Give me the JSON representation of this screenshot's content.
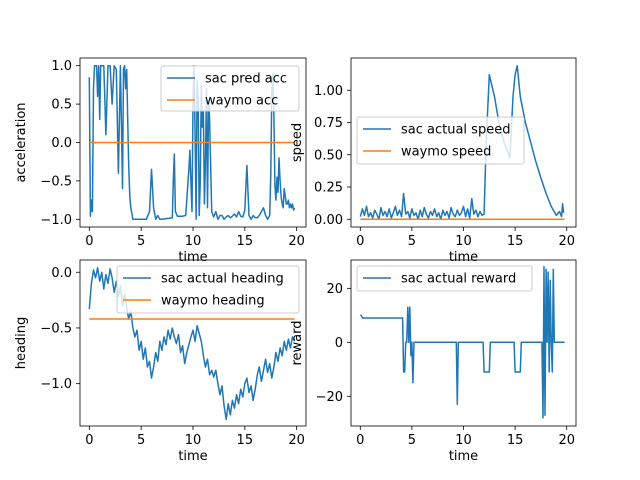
{
  "colors": {
    "blue": "#1f77b4",
    "orange": "#ff7f0e"
  },
  "chart_data": [
    {
      "type": "line",
      "xlabel": "time",
      "ylabel": "acceleration",
      "xlim": [
        -0.9,
        20.9
      ],
      "ylim": [
        -1.1,
        1.1
      ],
      "xticks": [
        0,
        5,
        10,
        15,
        20
      ],
      "yticks": [
        -1.0,
        -0.5,
        0.0,
        0.5,
        1.0
      ],
      "ytick_labels": [
        "−1.0",
        "−0.5",
        "0.0",
        "0.5",
        "1.0"
      ],
      "legend": "top-right",
      "series": [
        {
          "name": "sac pred acc",
          "x": [
            0.0,
            0.1,
            0.2,
            0.3,
            0.4,
            0.5,
            0.6,
            0.7,
            0.8,
            0.9,
            1.0,
            1.1,
            1.2,
            1.4,
            1.6,
            1.8,
            2.0,
            2.2,
            2.4,
            2.6,
            2.8,
            3.0,
            3.1,
            3.2,
            3.3,
            3.4,
            3.5,
            3.6,
            3.7,
            3.8,
            3.9,
            4.0,
            4.2,
            4.5,
            5.0,
            5.5,
            5.8,
            6.0,
            6.2,
            6.4,
            6.6,
            6.8,
            7.0,
            7.5,
            8.0,
            8.1,
            8.2,
            8.3,
            8.5,
            9.0,
            9.3,
            9.5,
            9.6,
            9.7,
            9.8,
            9.9,
            10.0,
            10.1,
            10.2,
            10.3,
            10.4,
            10.5,
            10.6,
            10.7,
            10.8,
            10.9,
            11.0,
            11.1,
            11.2,
            11.3,
            11.4,
            11.5,
            11.6,
            11.8,
            12.0,
            12.2,
            12.4,
            12.6,
            12.8,
            13.0,
            13.2,
            13.4,
            13.6,
            13.8,
            14.0,
            14.2,
            14.4,
            14.6,
            14.8,
            15.0,
            15.2,
            15.4,
            15.6,
            15.8,
            16.0,
            16.2,
            16.4,
            16.6,
            16.8,
            17.0,
            17.2,
            17.4,
            17.5,
            17.6,
            17.7,
            17.8,
            17.9,
            18.0,
            18.1,
            18.2,
            18.3,
            18.4,
            18.5,
            18.6,
            18.7,
            18.8,
            18.9,
            19.0,
            19.1,
            19.2,
            19.3,
            19.4,
            19.5,
            19.6,
            19.7,
            19.8
          ],
          "y": [
            0.85,
            -0.96,
            -0.75,
            -0.9,
            0.7,
            1.0,
            1.0,
            1.0,
            0.6,
            1.0,
            0.3,
            1.0,
            1.0,
            1.0,
            0.1,
            1.0,
            1.0,
            0.5,
            1.0,
            0.95,
            -0.4,
            1.0,
            0.2,
            -0.6,
            0.95,
            1.0,
            0.7,
            0.95,
            0.3,
            -0.3,
            -0.7,
            -0.85,
            -1.0,
            -1.0,
            -1.0,
            -1.0,
            -0.9,
            -0.35,
            -0.85,
            -1.0,
            -0.95,
            -1.0,
            -1.0,
            -0.99,
            -0.98,
            -0.5,
            -0.15,
            -0.9,
            -0.96,
            -0.96,
            -0.95,
            -0.55,
            -0.35,
            -0.1,
            -0.5,
            -0.9,
            0.5,
            1.0,
            0.1,
            -1.0,
            0.8,
            0.55,
            -0.95,
            -0.5,
            0.75,
            0.2,
            0.4,
            -0.8,
            -0.3,
            0.7,
            -0.85,
            0.55,
            0.3,
            -0.9,
            -0.97,
            -0.9,
            -1.0,
            -0.95,
            -0.95,
            -1.0,
            -0.97,
            -0.95,
            -0.98,
            -0.96,
            -0.93,
            -0.97,
            -0.9,
            -0.96,
            -0.97,
            -0.88,
            -0.3,
            -0.95,
            -1.0,
            -0.95,
            -0.98,
            -0.98,
            -0.95,
            -0.9,
            -0.85,
            -0.95,
            -1.0,
            -0.95,
            -0.4,
            0.65,
            0.9,
            0.35,
            -0.55,
            -0.75,
            -0.45,
            -0.65,
            -0.2,
            -0.5,
            -0.7,
            -0.8,
            -0.85,
            -0.6,
            -0.7,
            -0.8,
            -0.8,
            -0.75,
            -0.85,
            -0.8,
            -0.85,
            -0.8,
            -0.88,
            -0.85
          ]
        },
        {
          "name": "waymo acc",
          "x": [
            0,
            19.8
          ],
          "y": [
            0.0,
            0.0
          ]
        }
      ]
    },
    {
      "type": "line",
      "xlabel": "time",
      "ylabel": "speed",
      "xlim": [
        -0.9,
        20.9
      ],
      "ylim": [
        -0.06,
        1.25
      ],
      "xticks": [
        0,
        5,
        10,
        15,
        20
      ],
      "yticks": [
        0.0,
        0.25,
        0.5,
        0.75,
        1.0
      ],
      "ytick_labels": [
        "0.00",
        "0.25",
        "0.50",
        "0.75",
        "1.00"
      ],
      "legend": "center-left",
      "series": [
        {
          "name": "sac actual speed",
          "x": [
            0.0,
            0.2,
            0.4,
            0.6,
            0.8,
            1.0,
            1.2,
            1.4,
            1.6,
            1.8,
            2.0,
            2.2,
            2.4,
            2.6,
            2.8,
            3.0,
            3.2,
            3.4,
            3.6,
            3.8,
            4.0,
            4.2,
            4.4,
            4.6,
            4.8,
            5.0,
            5.2,
            5.4,
            5.6,
            5.8,
            6.0,
            6.2,
            6.4,
            6.6,
            6.8,
            7.0,
            7.2,
            7.4,
            7.6,
            7.8,
            8.0,
            8.2,
            8.4,
            8.6,
            8.8,
            9.0,
            9.2,
            9.4,
            9.6,
            9.8,
            10.0,
            10.2,
            10.4,
            10.6,
            10.8,
            11.0,
            11.2,
            11.4,
            11.6,
            11.8,
            12.0,
            12.2,
            12.5,
            13.0,
            13.5,
            14.0,
            14.5,
            14.8,
            15.0,
            15.2,
            15.5,
            16.0,
            16.5,
            17.0,
            17.5,
            18.0,
            18.5,
            19.0,
            19.3,
            19.5,
            19.6,
            19.7
          ],
          "y": [
            0.02,
            0.08,
            0.03,
            0.1,
            0.02,
            0.05,
            0.01,
            0.07,
            0.04,
            0.0,
            0.09,
            0.03,
            0.06,
            0.02,
            0.08,
            0.01,
            0.05,
            0.1,
            0.03,
            0.07,
            0.02,
            0.2,
            0.04,
            0.06,
            0.01,
            0.08,
            0.03,
            0.05,
            0.0,
            0.07,
            0.02,
            0.09,
            0.04,
            0.01,
            0.06,
            0.03,
            0.08,
            0.02,
            0.05,
            0.0,
            0.07,
            0.03,
            0.06,
            0.01,
            0.09,
            0.04,
            0.02,
            0.07,
            0.03,
            0.05,
            0.1,
            0.02,
            0.08,
            0.01,
            0.16,
            0.04,
            0.07,
            0.02,
            0.06,
            0.03,
            0.04,
            0.6,
            1.12,
            0.95,
            0.72,
            0.58,
            0.48,
            0.95,
            1.12,
            1.19,
            0.95,
            0.75,
            0.6,
            0.45,
            0.32,
            0.2,
            0.1,
            0.03,
            0.06,
            0.02,
            0.12,
            0.05
          ]
        },
        {
          "name": "waymo speed",
          "x": [
            0,
            19.8
          ],
          "y": [
            0.0,
            0.0
          ]
        }
      ]
    },
    {
      "type": "line",
      "xlabel": "time",
      "ylabel": "heading",
      "xlim": [
        -0.9,
        20.9
      ],
      "ylim": [
        -1.38,
        0.11
      ],
      "xticks": [
        0,
        5,
        10,
        15,
        20
      ],
      "yticks": [
        -1.0,
        -0.5,
        0.0
      ],
      "ytick_labels": [
        "−1.0",
        "−0.5",
        "0.0"
      ],
      "legend": "top-right",
      "series": [
        {
          "name": "sac actual heading",
          "x": [
            0.0,
            0.2,
            0.4,
            0.6,
            0.8,
            1.0,
            1.2,
            1.4,
            1.6,
            1.8,
            2.0,
            2.2,
            2.4,
            2.6,
            2.8,
            3.0,
            3.2,
            3.4,
            3.6,
            3.8,
            4.0,
            4.2,
            4.4,
            4.6,
            4.8,
            5.0,
            5.2,
            5.4,
            5.6,
            5.8,
            6.0,
            6.2,
            6.4,
            6.6,
            6.8,
            7.0,
            7.2,
            7.4,
            7.6,
            7.8,
            8.0,
            8.2,
            8.4,
            8.6,
            8.8,
            9.0,
            9.2,
            9.4,
            9.6,
            9.8,
            10.0,
            10.2,
            10.4,
            10.6,
            10.8,
            11.0,
            11.2,
            11.4,
            11.6,
            11.8,
            12.0,
            12.2,
            12.4,
            12.6,
            12.8,
            13.0,
            13.2,
            13.4,
            13.6,
            13.8,
            14.0,
            14.2,
            14.4,
            14.6,
            14.8,
            15.0,
            15.2,
            15.4,
            15.6,
            15.8,
            16.0,
            16.2,
            16.4,
            16.6,
            16.8,
            17.0,
            17.2,
            17.4,
            17.6,
            17.8,
            18.0,
            18.2,
            18.4,
            18.6,
            18.8,
            19.0,
            19.2,
            19.4,
            19.6,
            19.8
          ],
          "y": [
            -0.33,
            -0.1,
            0.02,
            -0.05,
            0.04,
            -0.08,
            0.0,
            -0.15,
            -0.02,
            -0.1,
            0.03,
            -0.05,
            -0.18,
            -0.08,
            -0.22,
            -0.12,
            -0.3,
            -0.2,
            -0.32,
            -0.42,
            -0.35,
            -0.5,
            -0.58,
            -0.52,
            -0.7,
            -0.62,
            -0.78,
            -0.68,
            -0.85,
            -0.8,
            -0.95,
            -0.85,
            -0.72,
            -0.8,
            -0.62,
            -0.7,
            -0.58,
            -0.65,
            -0.52,
            -0.6,
            -0.5,
            -0.58,
            -0.64,
            -0.56,
            -0.72,
            -0.66,
            -0.82,
            -0.72,
            -0.65,
            -0.58,
            -0.52,
            -0.62,
            -0.48,
            -0.55,
            -0.62,
            -0.75,
            -0.85,
            -0.78,
            -0.92,
            -0.88,
            -0.94,
            -0.88,
            -1.0,
            -1.1,
            -1.02,
            -1.2,
            -1.32,
            -1.18,
            -1.28,
            -1.15,
            -1.22,
            -1.1,
            -1.18,
            -1.05,
            -1.12,
            -1.0,
            -0.95,
            -1.08,
            -1.02,
            -1.15,
            -1.05,
            -0.92,
            -0.85,
            -0.98,
            -0.88,
            -0.78,
            -0.9,
            -0.82,
            -0.95,
            -0.85,
            -0.72,
            -0.8,
            -0.68,
            -0.75,
            -0.62,
            -0.7,
            -0.6,
            -0.68,
            -0.58,
            -0.62
          ]
        },
        {
          "name": "waymo heading",
          "x": [
            0,
            19.8
          ],
          "y": [
            -0.42,
            -0.42
          ]
        }
      ]
    },
    {
      "type": "line",
      "xlabel": "time",
      "ylabel": "reward",
      "xlim": [
        -0.9,
        20.9
      ],
      "ylim": [
        -31,
        30.5
      ],
      "xticks": [
        0,
        5,
        10,
        15,
        20
      ],
      "yticks": [
        -20,
        0,
        20
      ],
      "ytick_labels": [
        "−20",
        "0",
        "20"
      ],
      "legend": "top-left",
      "series": [
        {
          "name": "sac actual reward",
          "x": [
            0.0,
            0.1,
            0.2,
            1.0,
            2.0,
            3.0,
            4.0,
            4.1,
            4.2,
            4.3,
            4.4,
            4.5,
            4.6,
            4.7,
            4.8,
            4.9,
            5.0,
            5.1,
            5.2,
            5.3,
            5.4,
            5.6,
            6.0,
            7.0,
            8.0,
            9.0,
            9.3,
            9.4,
            9.5,
            9.6,
            10.0,
            11.0,
            11.9,
            12.0,
            12.5,
            12.6,
            13.0,
            14.0,
            14.9,
            15.0,
            15.5,
            15.6,
            16.0,
            17.0,
            17.5,
            17.6,
            17.7,
            17.8,
            17.9,
            18.0,
            18.1,
            18.2,
            18.3,
            18.4,
            18.5,
            18.6,
            18.7,
            18.8,
            19.0,
            19.5,
            19.8
          ],
          "y": [
            10,
            10,
            9,
            9,
            9,
            9,
            9,
            9,
            -11,
            -11,
            0,
            0,
            13,
            0,
            13,
            -5,
            0,
            -15,
            0,
            0,
            0,
            0,
            0,
            0,
            0,
            0,
            0,
            -23,
            0,
            0,
            0,
            0,
            0,
            -11,
            -11,
            0,
            0,
            0,
            0,
            -11,
            -11,
            0,
            0,
            0,
            0,
            0,
            -28,
            28,
            -27,
            27,
            0,
            26,
            -11,
            23,
            0,
            -11,
            27,
            0,
            0,
            0,
            0
          ]
        }
      ]
    }
  ]
}
